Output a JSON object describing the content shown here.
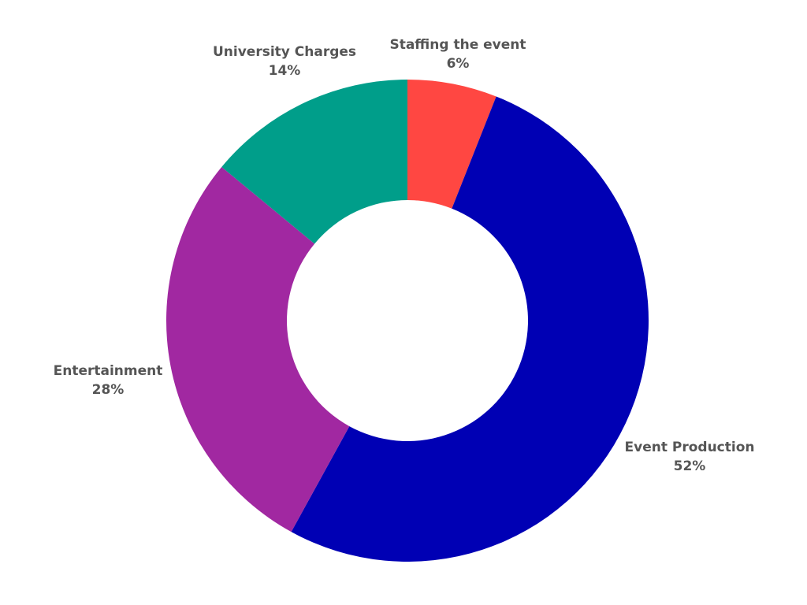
{
  "chart_data": {
    "type": "pie",
    "donut": true,
    "slices": [
      {
        "label": "Staffing the event",
        "value": 6,
        "display": "6%",
        "color": "#ff4742"
      },
      {
        "label": "Event Production",
        "value": 52,
        "display": "52%",
        "color": "#0000b4"
      },
      {
        "label": "Entertainment",
        "value": 28,
        "display": "28%",
        "color": "#a128a1"
      },
      {
        "label": "University Charges",
        "value": 14,
        "display": "14%",
        "color": "#009e8a"
      }
    ]
  }
}
